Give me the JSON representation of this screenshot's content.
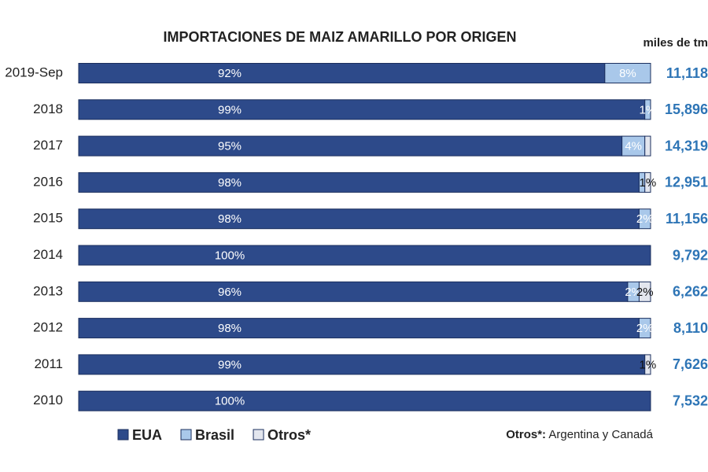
{
  "chart_data": {
    "type": "stacked_barh",
    "title": "IMPORTACIONES DE MAIZ AMARILLO POR ORIGEN",
    "unit_label": "miles de tm",
    "categories": [
      "2019-Sep",
      "2018",
      "2017",
      "2016",
      "2015",
      "2014",
      "2013",
      "2012",
      "2011",
      "2010"
    ],
    "xlim": [
      0,
      100
    ],
    "series": [
      {
        "name": "EUA",
        "color": "#2d4a8a",
        "label_color": "#ffffff",
        "values": [
          92,
          99,
          95,
          98,
          98,
          100,
          96,
          98,
          99,
          100
        ],
        "value_labels": [
          "92%",
          "99%",
          "95%",
          "98%",
          "98%",
          "100%",
          "96%",
          "98%",
          "99%",
          "100%"
        ]
      },
      {
        "name": "Brasil",
        "color": "#a9c8ea",
        "label_color": "#ffffff",
        "values": [
          8,
          1,
          4,
          1,
          2,
          0,
          2,
          2,
          0,
          0
        ],
        "value_labels": [
          "8%",
          "1%",
          "4%",
          null,
          "2%",
          null,
          "2%",
          "2%",
          null,
          null
        ]
      },
      {
        "name": "Otros*",
        "color": "#e3e6ee",
        "label_color": "#111111",
        "values": [
          0,
          0,
          1,
          1,
          0,
          0,
          2,
          0,
          1,
          0
        ],
        "value_labels": [
          null,
          null,
          null,
          "1%",
          null,
          null,
          "2%",
          null,
          "1%",
          null
        ]
      }
    ],
    "totals": {
      "values": [
        11118,
        15896,
        14319,
        12951,
        11156,
        9792,
        6262,
        8110,
        7626,
        7532
      ],
      "value_labels": [
        "11,118",
        "15,896",
        "14,319",
        "12,951",
        "11,156",
        "9,792",
        "6,262",
        "8,110",
        "7,626",
        "7,532"
      ]
    },
    "note_label": "Otros*:",
    "note": "Argentina y Canadá"
  }
}
